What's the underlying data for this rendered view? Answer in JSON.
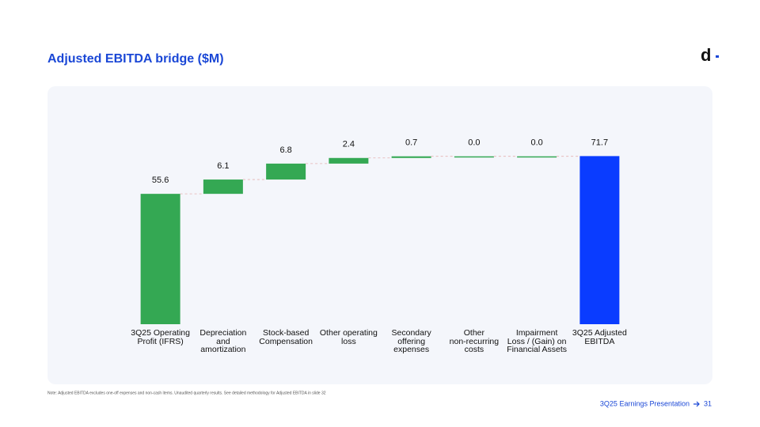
{
  "header": {
    "title": "Adjusted EBITDA bridge ($M)",
    "logo": "d"
  },
  "chart_data": {
    "type": "waterfall",
    "categories": [
      "3Q25 Operating\nProfit (IFRS)",
      "Depreciation\nand\namortization",
      "Stock-based\nCompensation",
      "Other operating\nloss",
      "Secondary\noffering\nexpenses",
      "Other\nnon-recurring\ncosts",
      "Impairment\nLoss / (Gain) on\nFinancial Assets",
      "3Q25 Adjusted\nEBITDA"
    ],
    "values": [
      55.6,
      6.1,
      6.8,
      2.4,
      0.7,
      0.0,
      0.0,
      71.7
    ],
    "value_labels": [
      "55.6",
      "6.1",
      "6.8",
      "2.4",
      "0.7",
      "0.0",
      "0.0",
      "71.7"
    ],
    "measures": [
      "absolute",
      "relative",
      "relative",
      "relative",
      "relative",
      "relative",
      "relative",
      "total"
    ],
    "color": "#34a853",
    "total_color": "#0a3cff",
    "ylim": [
      0,
      86
    ]
  },
  "footnote": "Note: Adjusted EBITDA excludes one-off expenses and non-cash items. Unaudited quarterly results. See detailed methodology for Adjusted EBITDA in slide 32",
  "footer": {
    "text": "3Q25 Earnings Presentation",
    "page": "31"
  }
}
